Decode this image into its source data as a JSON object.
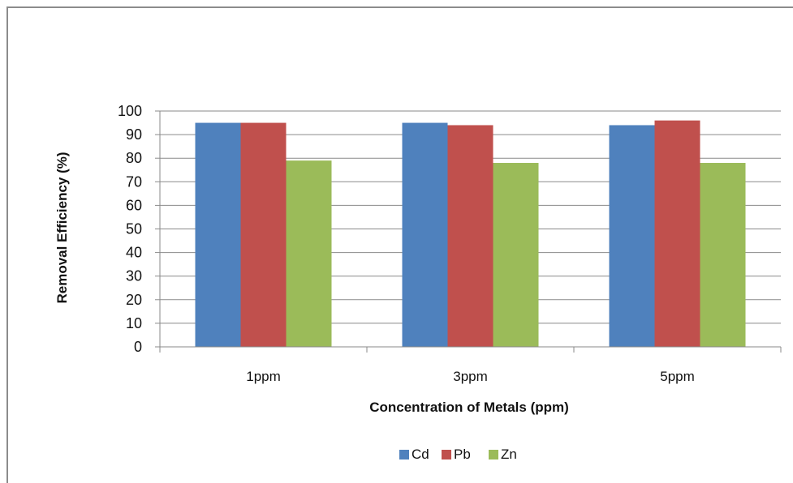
{
  "chart_data": {
    "type": "bar",
    "title": "",
    "categories": [
      "1ppm",
      "3ppm",
      "5ppm"
    ],
    "series": [
      {
        "name": "Cd",
        "values": [
          95,
          95,
          94
        ],
        "color": "#4f81bd"
      },
      {
        "name": "Pb",
        "values": [
          95,
          94,
          96
        ],
        "color": "#c0504d"
      },
      {
        "name": "Zn",
        "values": [
          79,
          78,
          78
        ],
        "color": "#9bbb59"
      }
    ],
    "xlabel": "Concentration of Metals (ppm)",
    "ylabel": "Removal Efficiency (%)",
    "ylim": [
      0,
      100
    ],
    "yticks": [
      0,
      10,
      20,
      30,
      40,
      50,
      60,
      70,
      80,
      90,
      100
    ],
    "grid": true,
    "legend_position": "bottom"
  }
}
